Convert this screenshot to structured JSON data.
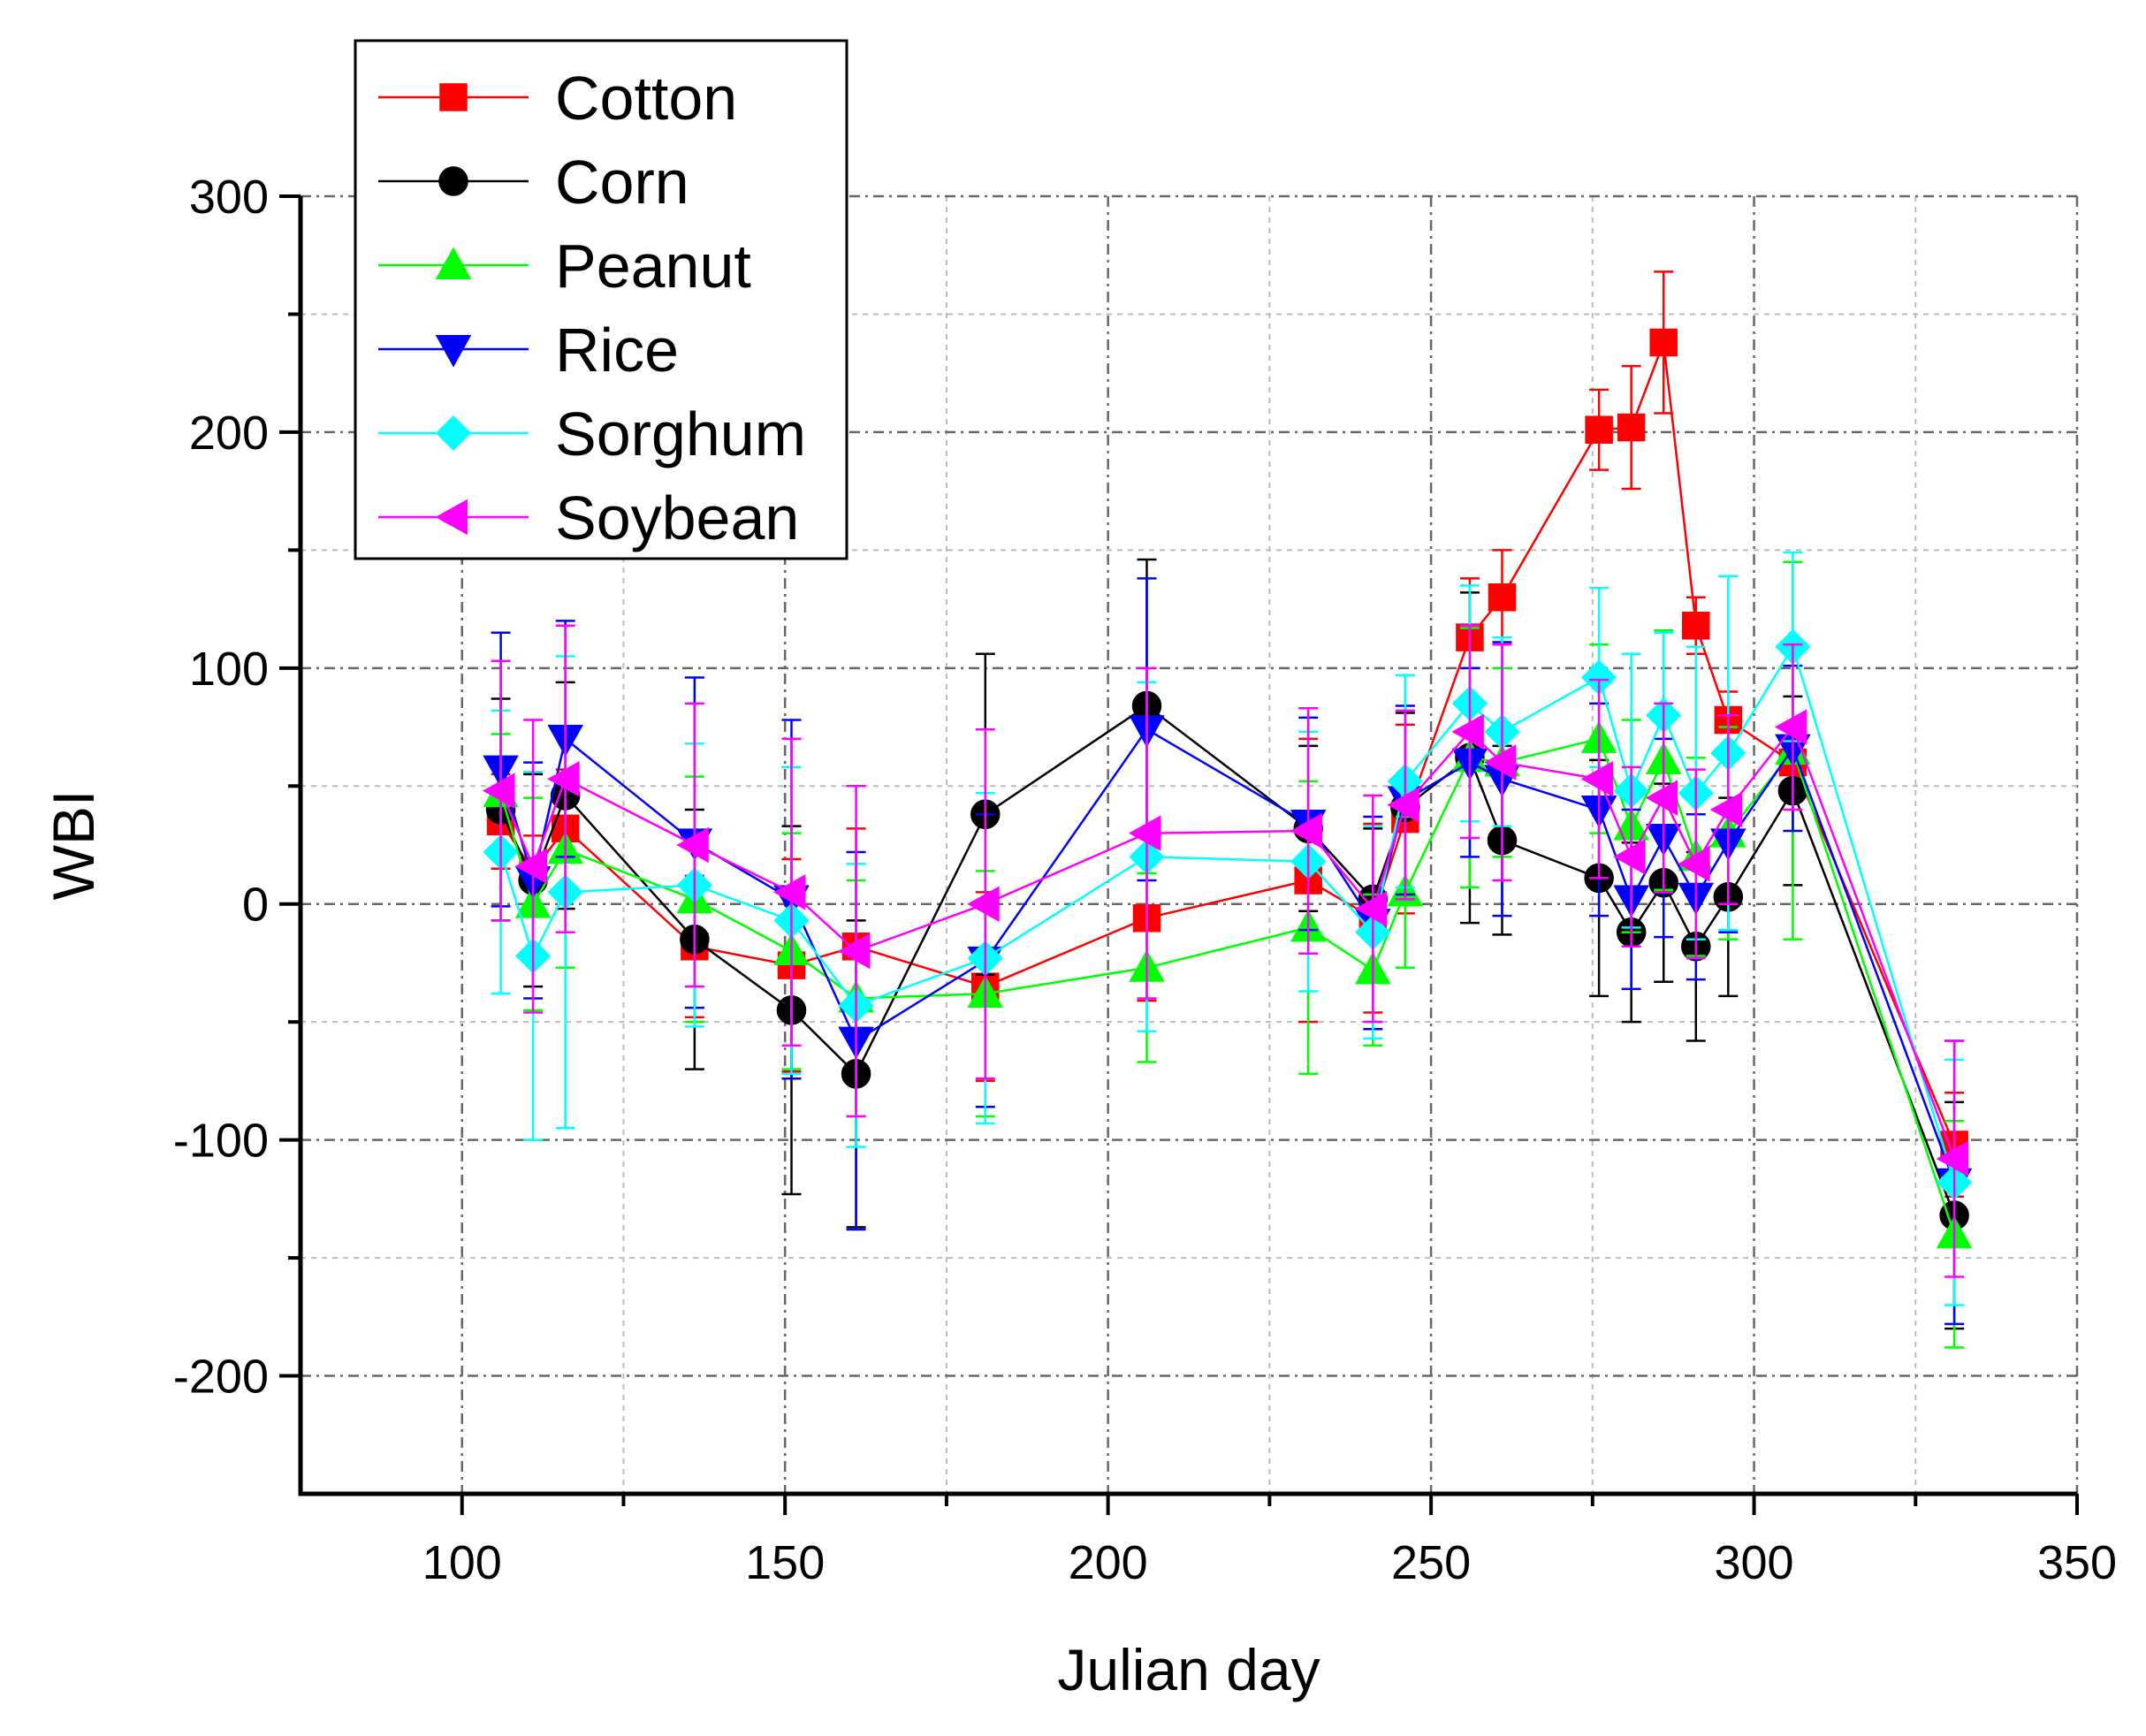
{
  "chart_data": {
    "type": "line",
    "xlabel": "Julian day",
    "ylabel": "WBI",
    "xlim": [
      75,
      350
    ],
    "ylim": [
      -250,
      300
    ],
    "xticks": [
      100,
      150,
      200,
      250,
      300,
      350
    ],
    "yticks": [
      -200,
      -100,
      0,
      100,
      200,
      300
    ],
    "x_minor_step": 25,
    "y_minor_step": 50,
    "grid": true,
    "error_bars": true,
    "legend_position": "top-left",
    "series": [
      {
        "name": "Cotton",
        "color": "#ff0000",
        "marker": "square",
        "points": [
          [
            106,
            35
          ],
          [
            111,
            14
          ],
          [
            116,
            32
          ],
          [
            136,
            -18
          ],
          [
            151,
            -26
          ],
          [
            161,
            -18
          ],
          [
            181,
            -35
          ],
          [
            206,
            -6
          ],
          [
            231,
            10
          ],
          [
            241,
            -6
          ],
          [
            246,
            36
          ],
          [
            256,
            113
          ],
          [
            261,
            130
          ],
          [
            276,
            201
          ],
          [
            281,
            202
          ],
          [
            286,
            238
          ],
          [
            291,
            118
          ],
          [
            296,
            78
          ],
          [
            306,
            60
          ],
          [
            331,
            -102
          ]
        ],
        "err": [
          20,
          15,
          25,
          30,
          45,
          50,
          40,
          35,
          60,
          40,
          40,
          25,
          20,
          17,
          26,
          30,
          12,
          12,
          15,
          22
        ]
      },
      {
        "name": "Corn",
        "color": "#000000",
        "marker": "circle",
        "points": [
          [
            106,
            40
          ],
          [
            111,
            10
          ],
          [
            116,
            46
          ],
          [
            136,
            -15
          ],
          [
            151,
            -45
          ],
          [
            161,
            -72
          ],
          [
            181,
            38
          ],
          [
            206,
            84
          ],
          [
            231,
            32
          ],
          [
            241,
            2
          ],
          [
            246,
            41
          ],
          [
            256,
            62
          ],
          [
            261,
            27
          ],
          [
            276,
            11
          ],
          [
            281,
            -12
          ],
          [
            286,
            9
          ],
          [
            291,
            -18
          ],
          [
            296,
            3
          ],
          [
            306,
            48
          ],
          [
            331,
            -132
          ]
        ],
        "err": [
          47,
          45,
          48,
          55,
          78,
          65,
          68,
          62,
          35,
          30,
          40,
          70,
          40,
          50,
          38,
          42,
          40,
          42,
          40,
          48
        ]
      },
      {
        "name": "Peanut",
        "color": "#00ff00",
        "marker": "triangle-up",
        "points": [
          [
            106,
            47
          ],
          [
            111,
            0
          ],
          [
            116,
            23
          ],
          [
            136,
            2
          ],
          [
            151,
            -20
          ],
          [
            161,
            -40
          ],
          [
            181,
            -38
          ],
          [
            206,
            -27
          ],
          [
            231,
            -10
          ],
          [
            241,
            -28
          ],
          [
            246,
            5
          ],
          [
            256,
            62
          ],
          [
            261,
            60
          ],
          [
            276,
            70
          ],
          [
            281,
            33
          ],
          [
            286,
            61
          ],
          [
            291,
            20
          ],
          [
            296,
            30
          ],
          [
            306,
            65
          ],
          [
            331,
            -140
          ]
        ],
        "err": [
          25,
          45,
          50,
          52,
          50,
          50,
          52,
          40,
          62,
          32,
          32,
          55,
          40,
          40,
          45,
          55,
          42,
          45,
          80,
          48
        ]
      },
      {
        "name": "Rice",
        "color": "#0000ff",
        "marker": "triangle-down",
        "points": [
          [
            106,
            57
          ],
          [
            111,
            10
          ],
          [
            116,
            70
          ],
          [
            136,
            26
          ],
          [
            151,
            2
          ],
          [
            161,
            -58
          ],
          [
            181,
            -24
          ],
          [
            206,
            74
          ],
          [
            231,
            34
          ],
          [
            241,
            -8
          ],
          [
            246,
            44
          ],
          [
            256,
            60
          ],
          [
            261,
            53
          ],
          [
            276,
            40
          ],
          [
            281,
            2
          ],
          [
            286,
            28
          ],
          [
            291,
            3
          ],
          [
            296,
            26
          ],
          [
            306,
            66
          ],
          [
            331,
            -118
          ]
        ],
        "err": [
          58,
          50,
          50,
          70,
          76,
          80,
          62,
          64,
          45,
          45,
          40,
          40,
          58,
          45,
          38,
          42,
          35,
          38,
          35,
          60
        ]
      },
      {
        "name": "Sorghum",
        "color": "#00ffff",
        "marker": "diamond",
        "points": [
          [
            106,
            22
          ],
          [
            111,
            -22
          ],
          [
            116,
            5
          ],
          [
            136,
            8
          ],
          [
            151,
            -7
          ],
          [
            161,
            -43
          ],
          [
            181,
            -23
          ],
          [
            206,
            20
          ],
          [
            231,
            18
          ],
          [
            241,
            -12
          ],
          [
            246,
            52
          ],
          [
            256,
            85
          ],
          [
            261,
            73
          ],
          [
            276,
            96
          ],
          [
            281,
            48
          ],
          [
            286,
            80
          ],
          [
            291,
            47
          ],
          [
            296,
            64
          ],
          [
            306,
            109
          ],
          [
            331,
            -118
          ]
        ],
        "err": [
          60,
          78,
          100,
          60,
          65,
          60,
          70,
          74,
          55,
          45,
          45,
          50,
          40,
          38,
          58,
          35,
          62,
          75,
          40,
          52
        ]
      },
      {
        "name": "Soybean",
        "color": "#ff00ff",
        "marker": "triangle-left",
        "points": [
          [
            106,
            48
          ],
          [
            111,
            16
          ],
          [
            116,
            53
          ],
          [
            136,
            25
          ],
          [
            151,
            5
          ],
          [
            161,
            -20
          ],
          [
            181,
            0
          ],
          [
            206,
            30
          ],
          [
            231,
            31
          ],
          [
            241,
            -2
          ],
          [
            246,
            42
          ],
          [
            256,
            73
          ],
          [
            261,
            60
          ],
          [
            276,
            53
          ],
          [
            281,
            20
          ],
          [
            286,
            45
          ],
          [
            291,
            17
          ],
          [
            296,
            40
          ],
          [
            306,
            75
          ],
          [
            331,
            -108
          ]
        ],
        "err": [
          55,
          62,
          65,
          60,
          65,
          70,
          74,
          70,
          52,
          48,
          40,
          45,
          50,
          42,
          38,
          40,
          40,
          40,
          35,
          50
        ]
      }
    ]
  }
}
